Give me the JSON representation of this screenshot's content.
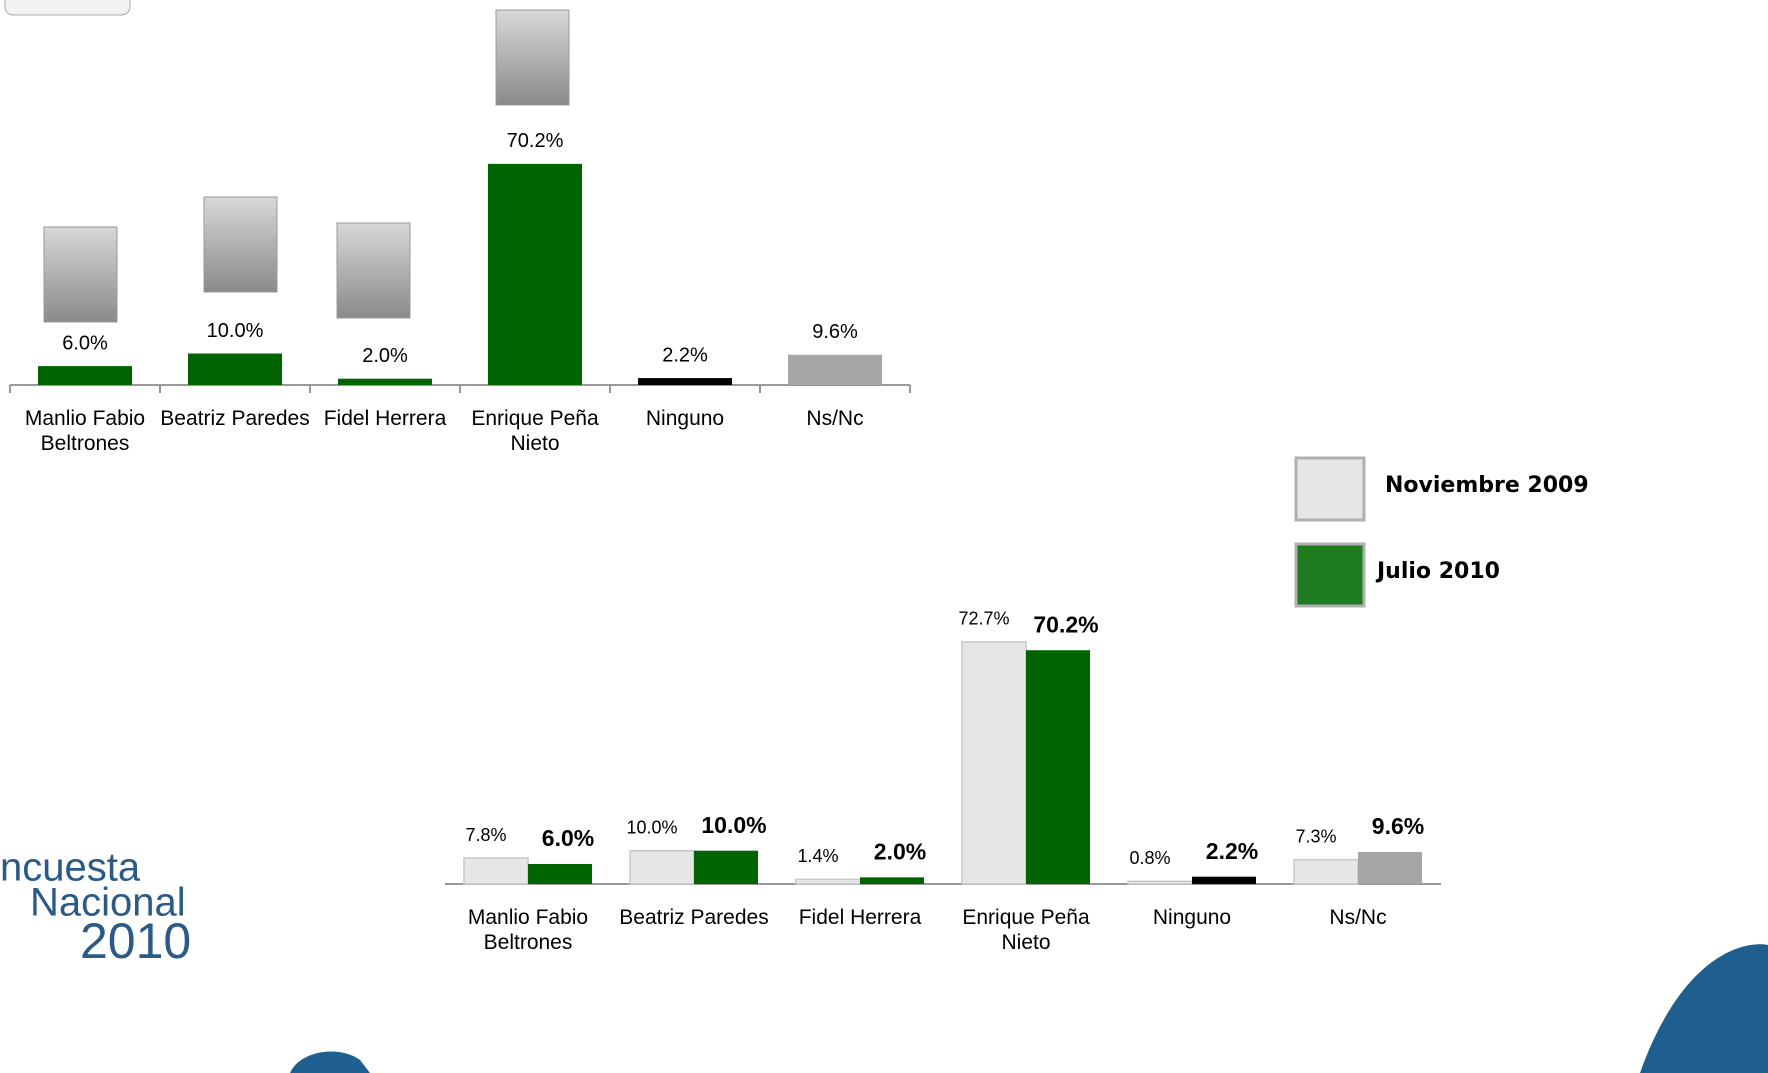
{
  "chart_data": [
    {
      "type": "bar",
      "categories": [
        "Manlio Fabio Beltrones",
        "Beatriz Paredes",
        "Fidel Herrera",
        "Enrique Peña Nieto",
        "Ninguno",
        "Ns/Nc"
      ],
      "values": [
        6.0,
        10.0,
        2.0,
        70.2,
        2.2,
        9.6
      ],
      "value_labels": [
        "6.0%",
        "10.0%",
        "2.0%",
        "70.2%",
        "2.2%",
        "9.6%"
      ],
      "colors": [
        "#006400",
        "#006400",
        "#006400",
        "#006400",
        "#000000",
        "#a6a6a6"
      ]
    },
    {
      "type": "grouped_bar",
      "categories": [
        "Manlio Fabio Beltrones",
        "Beatriz Paredes",
        "Fidel Herrera",
        "Enrique Peña Nieto",
        "Ninguno",
        "Ns/Nc"
      ],
      "series": [
        {
          "name": "Noviembre 2009",
          "color": "#e6e6e6",
          "values": [
            7.8,
            10.0,
            1.4,
            72.7,
            0.8,
            7.3
          ],
          "value_labels": [
            "7.8%",
            "10.0%",
            "1.4%",
            "72.7%",
            "0.8%",
            "7.3%"
          ]
        },
        {
          "name": "Julio 2010",
          "color": "#1e7b1e",
          "values": [
            6.0,
            10.0,
            2.0,
            70.2,
            2.2,
            9.6
          ],
          "value_labels": [
            "6.0%",
            "10.0%",
            "2.0%",
            "70.2%",
            "2.2%",
            "9.6%"
          ],
          "colors": [
            "#006400",
            "#006400",
            "#006400",
            "#006400",
            "#000000",
            "#a6a6a6"
          ]
        }
      ]
    }
  ]
}
